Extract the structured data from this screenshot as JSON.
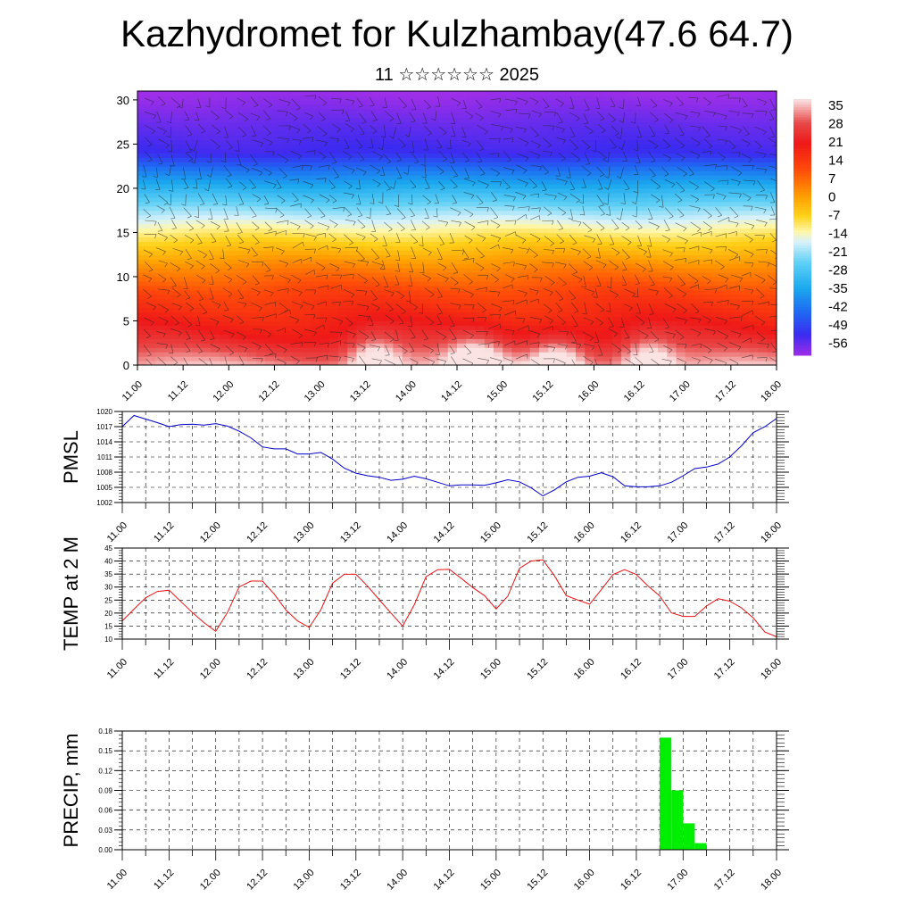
{
  "title": "Kazhydromet for Kulzhambay(47.6 64.7)",
  "subtitle": "11 ☆☆☆☆☆☆ 2025",
  "chart_data": [
    {
      "type": "heatmap",
      "name": "vertical-section",
      "xlabel": "",
      "ylabel": "",
      "x_ticks": [
        "11.00",
        "11.12",
        "12.00",
        "12.12",
        "13.00",
        "13.12",
        "14.00",
        "14.12",
        "15.00",
        "15.12",
        "16.00",
        "16.12",
        "17.00",
        "17.12",
        "18.00"
      ],
      "y_ticks": [
        0,
        5,
        10,
        15,
        20,
        25,
        30
      ],
      "ylim": [
        0,
        31
      ],
      "colorbar_labels": [
        "35",
        "28",
        "21",
        "14",
        "7",
        "0",
        "-7",
        "-14",
        "-21",
        "-28",
        "-35",
        "-42",
        "-49",
        "-56"
      ],
      "colorbar_range": [
        -60,
        39
      ],
      "colors": {
        "hot": "#f8c8c8",
        "red": "#ee1d1d",
        "orange": "#ff8800",
        "yellow": "#ffe22a",
        "lightblue": "#cfeefa",
        "cyan": "#21b0f0",
        "blue": "#1f3ee8",
        "violet": "#9a34ec"
      },
      "levels": [
        {
          "height": 0,
          "value": 35
        },
        {
          "height": 3,
          "value": 24
        },
        {
          "height": 8,
          "value": 14
        },
        {
          "height": 11,
          "value": 5
        },
        {
          "height": 14,
          "value": -6
        },
        {
          "height": 16,
          "value": -14
        },
        {
          "height": 19,
          "value": -27
        },
        {
          "height": 22,
          "value": -41
        },
        {
          "height": 24,
          "value": -52
        },
        {
          "height": 27,
          "value": -55
        },
        {
          "height": 31,
          "value": -60
        }
      ],
      "warm_cores": [
        {
          "x": 2.6,
          "value": 39
        },
        {
          "x": 3.7,
          "value": 39
        },
        {
          "x": 4.6,
          "value": 39
        },
        {
          "x": 5.6,
          "value": 38
        }
      ]
    },
    {
      "type": "line",
      "name": "pmsl",
      "ylabel": "PMSL",
      "ylim": [
        1002,
        1020
      ],
      "y_ticks": [
        1002,
        1005,
        1008,
        1011,
        1014,
        1017,
        1020
      ],
      "x_ticks": [
        "11.00",
        "11.12",
        "12.00",
        "12.12",
        "13.00",
        "13.12",
        "14.00",
        "14.12",
        "15.00",
        "15.12",
        "16.00",
        "16.12",
        "17.00",
        "17.12",
        "18.00"
      ],
      "color": "#0000cc",
      "x": [
        0.0,
        0.125,
        0.25,
        0.375,
        0.5,
        0.625,
        0.75,
        0.875,
        1.0,
        1.125,
        1.25,
        1.375,
        1.5,
        1.625,
        1.75,
        1.875,
        2.0,
        2.125,
        2.25,
        2.375,
        2.5,
        2.625,
        2.75,
        2.875,
        3.0,
        3.125,
        3.25,
        3.375,
        3.5,
        3.625,
        3.75,
        3.875,
        4.0,
        4.125,
        4.25,
        4.375,
        4.5,
        4.625,
        4.75,
        4.875,
        5.0,
        5.125,
        5.25,
        5.375,
        5.5,
        5.625,
        5.75,
        5.875,
        6.0,
        6.125,
        6.25,
        6.375,
        6.5,
        6.625,
        6.75,
        6.875,
        7.0
      ],
      "values": [
        1017.0,
        1019.2,
        1018.5,
        1017.8,
        1017.0,
        1017.4,
        1017.5,
        1017.3,
        1017.6,
        1017.1,
        1016.1,
        1014.8,
        1013.0,
        1012.6,
        1012.6,
        1011.6,
        1011.6,
        1011.9,
        1010.6,
        1008.8,
        1007.8,
        1007.3,
        1007.0,
        1006.4,
        1006.6,
        1007.2,
        1006.7,
        1006.0,
        1005.3,
        1005.5,
        1005.5,
        1005.4,
        1005.9,
        1006.5,
        1006.1,
        1004.9,
        1003.3,
        1004.5,
        1006.1,
        1007.0,
        1007.2,
        1007.9,
        1007.1,
        1005.3,
        1005.1,
        1005.1,
        1005.3,
        1006.0,
        1007.3,
        1008.7,
        1009.0,
        1009.6,
        1011.0,
        1013.2,
        1015.8,
        1017.0,
        1018.6
      ]
    },
    {
      "type": "line",
      "name": "temp-2m",
      "ylabel": "TEMP at 2 M",
      "ylim": [
        10,
        45
      ],
      "y_ticks": [
        10,
        15,
        20,
        25,
        30,
        35,
        40,
        45
      ],
      "x_ticks": [
        "11.00",
        "11.12",
        "12.00",
        "12.12",
        "13.00",
        "13.12",
        "14.00",
        "14.12",
        "15.00",
        "15.12",
        "16.00",
        "16.12",
        "17.00",
        "17.12",
        "18.00"
      ],
      "color": "#ee1111",
      "x": [
        0.0,
        0.125,
        0.25,
        0.375,
        0.5,
        0.625,
        0.75,
        0.875,
        1.0,
        1.125,
        1.25,
        1.375,
        1.5,
        1.625,
        1.75,
        1.875,
        2.0,
        2.125,
        2.25,
        2.375,
        2.5,
        2.625,
        2.75,
        2.875,
        3.0,
        3.125,
        3.25,
        3.375,
        3.5,
        3.625,
        3.75,
        3.875,
        4.0,
        4.125,
        4.25,
        4.375,
        4.5,
        4.625,
        4.75,
        4.875,
        5.0,
        5.125,
        5.25,
        5.375,
        5.5,
        5.625,
        5.75,
        5.875,
        6.0,
        6.125,
        6.25,
        6.375,
        6.5,
        6.625,
        6.75,
        6.875,
        7.0
      ],
      "values": [
        17.0,
        21.5,
        25.9,
        28.3,
        28.8,
        24.5,
        20.2,
        16.3,
        13.0,
        20.2,
        30.0,
        32.3,
        32.3,
        27.3,
        21.2,
        17.0,
        14.5,
        21.3,
        31.5,
        34.9,
        34.9,
        30.3,
        25.1,
        20.0,
        15.0,
        23.2,
        34.0,
        36.7,
        36.8,
        33.4,
        29.8,
        26.7,
        21.6,
        26.5,
        37.2,
        40.0,
        40.5,
        34.3,
        26.7,
        25.0,
        23.4,
        29.0,
        34.8,
        36.7,
        34.8,
        30.4,
        26.6,
        20.1,
        18.7,
        18.7,
        22.7,
        25.5,
        24.6,
        22.0,
        18.2,
        12.7,
        10.9
      ]
    },
    {
      "type": "bar",
      "name": "precip",
      "ylabel": "PRECIP, mm",
      "ylim": [
        0,
        0.18
      ],
      "y_ticks": [
        "0.00",
        "0.03",
        "0.06",
        "0.09",
        "0.12",
        "0.15",
        "0.18"
      ],
      "x_ticks": [
        "11.00",
        "11.12",
        "12.00",
        "12.12",
        "13.00",
        "13.12",
        "14.00",
        "14.12",
        "15.00",
        "15.12",
        "16.00",
        "16.12",
        "17.00",
        "17.12",
        "18.00"
      ],
      "color": "#00ee00",
      "x": [
        5.75,
        5.875,
        6.0,
        6.125
      ],
      "values": [
        0.17,
        0.09,
        0.04,
        0.01
      ]
    }
  ],
  "colorbar": {
    "stops": [
      {
        "v": -60,
        "c": "#9e2ee8"
      },
      {
        "v": -52,
        "c": "#3b2bf0"
      },
      {
        "v": -44,
        "c": "#2163f2"
      },
      {
        "v": -34,
        "c": "#1aa8ee"
      },
      {
        "v": -24,
        "c": "#5fd0f5"
      },
      {
        "v": -16,
        "c": "#d8f2fb"
      },
      {
        "v": -12,
        "c": "#fff6a8"
      },
      {
        "v": -6,
        "c": "#ffd21a"
      },
      {
        "v": 2,
        "c": "#ff9a00"
      },
      {
        "v": 12,
        "c": "#ff4a0a"
      },
      {
        "v": 22,
        "c": "#ee1818"
      },
      {
        "v": 30,
        "c": "#e84a4a"
      },
      {
        "v": 39,
        "c": "#fbe3e3"
      }
    ]
  }
}
